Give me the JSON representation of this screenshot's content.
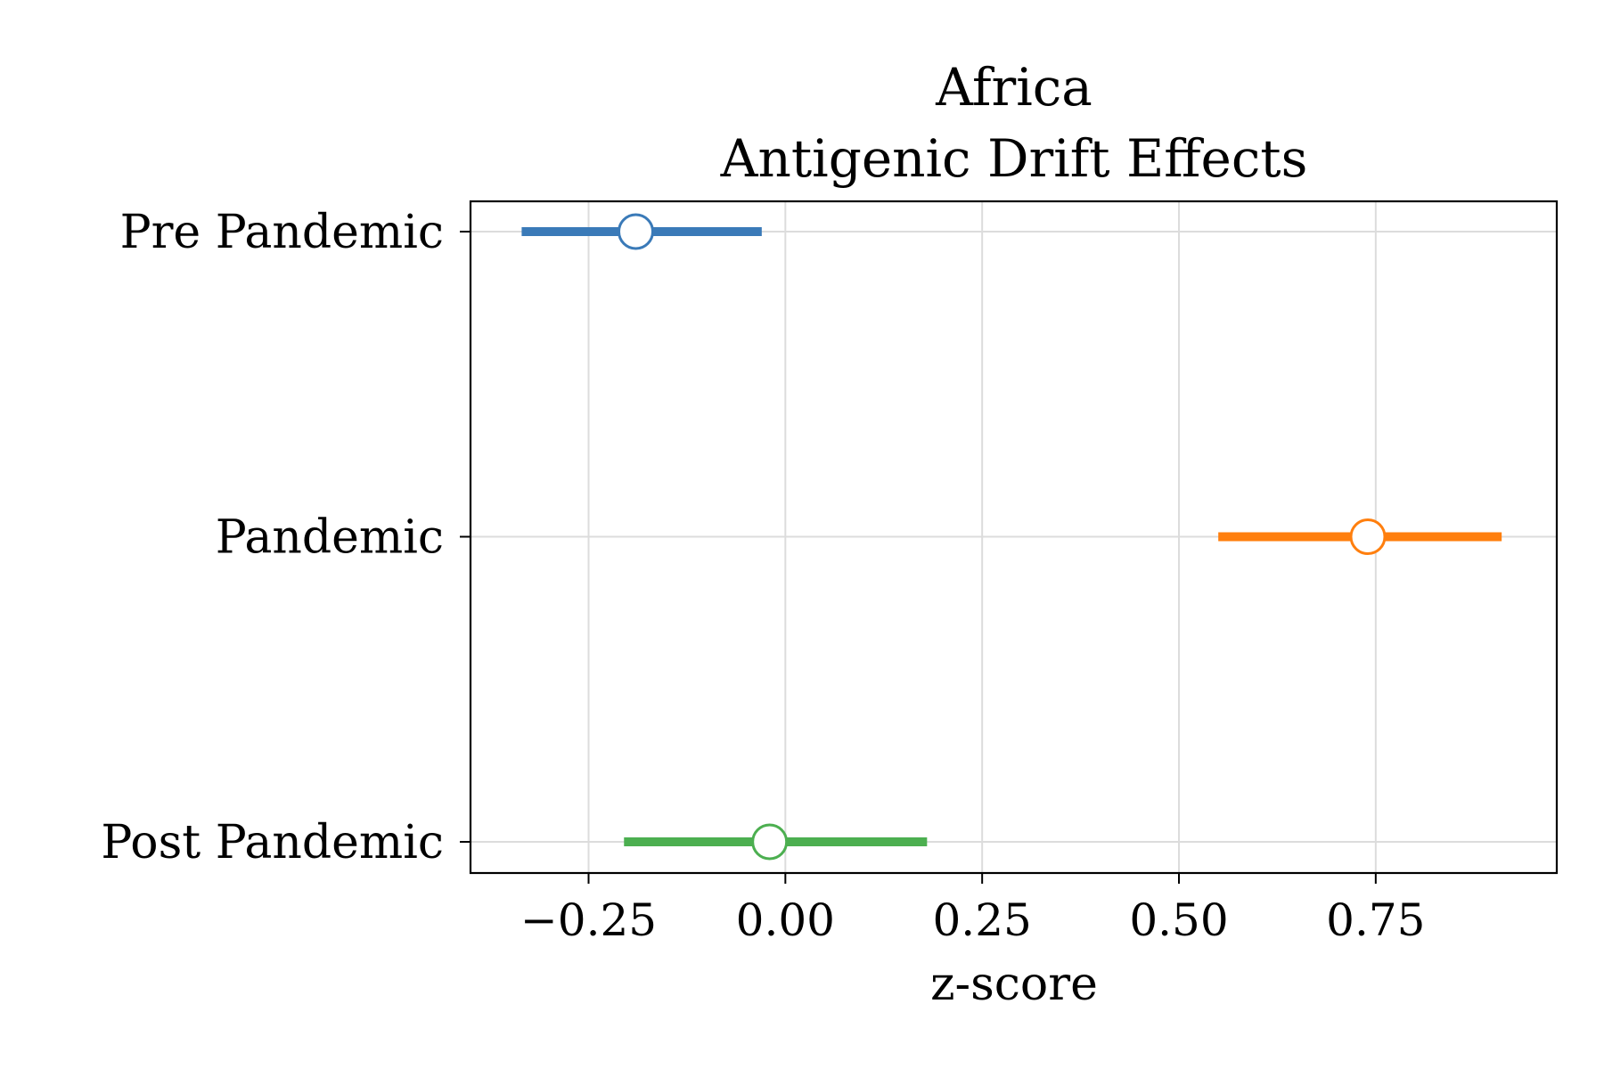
{
  "chart_data": {
    "type": "forest",
    "title_lines": [
      "Africa",
      "Antigenic Drift Effects"
    ],
    "xlabel": "z-score",
    "ylabel": "",
    "xlim": [
      -0.4,
      0.98
    ],
    "xticks": [
      -0.25,
      0.0,
      0.25,
      0.5,
      0.75
    ],
    "xtick_labels": [
      "−0.25",
      "0.00",
      "0.25",
      "0.50",
      "0.75"
    ],
    "grid": true,
    "categories": [
      "Pre Pandemic",
      "Pandemic",
      "Post Pandemic"
    ],
    "points": [
      {
        "category": "Pre Pandemic",
        "estimate": -0.19,
        "lower": -0.335,
        "upper": -0.03,
        "color": "#3a7ab8"
      },
      {
        "category": "Pandemic",
        "estimate": 0.74,
        "lower": 0.55,
        "upper": 0.91,
        "color": "#ff7f0e"
      },
      {
        "category": "Post Pandemic",
        "estimate": -0.02,
        "lower": -0.205,
        "upper": 0.18,
        "color": "#4caf50"
      }
    ]
  }
}
